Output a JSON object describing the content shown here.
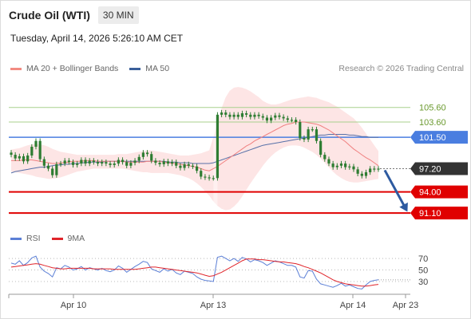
{
  "header": {
    "title": "Crude Oil (WTI)",
    "interval": "30 MIN",
    "datetime": "Tuesday, April 14, 2026 5:26:10 AM CET",
    "copyright": "Research © 2026 Trading Central"
  },
  "legend": [
    {
      "label": "MA 20 + Bollinger Bands",
      "color": "#f28b82"
    },
    {
      "label": "MA 50",
      "color": "#3a5f9a"
    }
  ],
  "rsi_legend": [
    {
      "label": "RSI",
      "color": "#5b7fd6"
    },
    {
      "label": "9MA",
      "color": "#e0242a"
    }
  ],
  "colors": {
    "resistance": "#a8d08d",
    "pivot": "#4a7ee0",
    "support": "#e00000",
    "last": "#333333",
    "candle": "#2e7d32",
    "arrow": "#2d5aa0",
    "band_fill": "#fde3e3"
  },
  "chart_data": {
    "type": "candlestick",
    "x_ticks": [
      "Apr 10",
      "Apr 13",
      "Apr 14",
      "Apr 23"
    ],
    "ylim": [
      88.6,
      109.4
    ],
    "levels": [
      {
        "value": 105.6,
        "label": "105.60",
        "kind": "resistance"
      },
      {
        "value": 103.6,
        "label": "103.60",
        "kind": "resistance"
      },
      {
        "value": 101.5,
        "label": "101.50",
        "kind": "pivot"
      },
      {
        "value": 97.2,
        "label": "97.20",
        "kind": "last"
      },
      {
        "value": 94.0,
        "label": "94.00",
        "kind": "support"
      },
      {
        "value": 91.1,
        "label": "91.10",
        "kind": "support"
      }
    ],
    "closes": [
      99.1,
      98.6,
      98.9,
      98.2,
      99.0,
      100.2,
      101.0,
      98.5,
      97.6,
      97.2,
      96.3,
      97.8,
      97.9,
      98.3,
      98.1,
      97.7,
      97.9,
      98.4,
      97.9,
      98.3,
      98.1,
      97.9,
      98.1,
      97.9,
      97.7,
      97.9,
      98.4,
      98.1,
      97.6,
      98.0,
      98.3,
      98.8,
      99.4,
      99.2,
      98.3,
      98.0,
      97.8,
      98.2,
      97.9,
      98.1,
      97.6,
      97.3,
      97.8,
      97.6,
      97.5,
      96.9,
      96.1,
      96.0,
      95.9,
      95.9,
      104.6,
      104.9,
      104.6,
      104.3,
      104.6,
      104.3,
      104.8,
      104.6,
      104.3,
      104.6,
      104.4,
      104.2,
      103.8,
      104.2,
      104.5,
      104.3,
      104.1,
      103.9,
      103.9,
      103.6,
      101.4,
      101.2,
      102.6,
      102.6,
      101.0,
      99.1,
      98.5,
      97.9,
      97.4,
      97.6,
      97.9,
      97.4,
      97.5,
      97.1,
      96.5,
      96.2,
      96.7,
      97.2,
      97.1,
      97.2
    ],
    "ma20": [
      98.3,
      98.3,
      98.3,
      98.4,
      98.4,
      98.4,
      98.3,
      98.2,
      98.1,
      98.0,
      97.9,
      97.9,
      98.0,
      98.0,
      98.1,
      98.2,
      98.2,
      98.2,
      98.3,
      98.3,
      98.3,
      98.2,
      98.2,
      98.2,
      98.2,
      98.2,
      98.2,
      98.2,
      98.1,
      98.1,
      98.1,
      98.1,
      98.1,
      98.2,
      98.2,
      98.2,
      98.2,
      98.1,
      98.0,
      97.9,
      97.9,
      97.8,
      97.7,
      97.6,
      97.5,
      97.4,
      97.2,
      97.0,
      96.9,
      97.2,
      97.5,
      97.9,
      98.3,
      98.7,
      99.1,
      99.5,
      99.9,
      100.3,
      100.6,
      101.0,
      101.3,
      101.6,
      101.9,
      102.2,
      102.5,
      102.8,
      103.1,
      103.3,
      103.4,
      103.6,
      103.6,
      103.6,
      103.5,
      103.4,
      103.3,
      103.1,
      102.8,
      102.5,
      102.1,
      101.7,
      101.3,
      100.9,
      100.4,
      99.9,
      99.5,
      99.1,
      98.7,
      98.4,
      98.0,
      97.6
    ],
    "ma50": [
      96.6,
      96.8,
      96.9,
      97.0,
      97.1,
      97.2,
      97.3,
      97.4,
      97.4,
      97.5,
      97.6,
      97.7,
      97.7,
      97.8,
      97.8,
      97.9,
      97.9,
      98.0,
      98.0,
      98.1,
      98.1,
      98.1,
      98.1,
      98.2,
      98.2,
      98.2,
      98.2,
      98.2,
      98.2,
      98.2,
      98.2,
      98.2,
      98.2,
      98.2,
      98.2,
      98.2,
      98.2,
      98.2,
      98.1,
      98.1,
      98.1,
      98.0,
      98.0,
      98.0,
      97.9,
      97.9,
      97.9,
      97.9,
      97.9,
      98.0,
      98.2,
      98.4,
      98.6,
      98.8,
      99.0,
      99.2,
      99.4,
      99.6,
      99.8,
      100.0,
      100.2,
      100.4,
      100.5,
      100.6,
      100.7,
      100.8,
      100.9,
      101.0,
      101.1,
      101.2,
      101.3,
      101.4,
      101.5,
      101.6,
      101.7,
      101.8,
      101.8,
      101.9,
      101.9,
      101.9,
      101.9,
      101.9,
      101.8,
      101.8,
      101.7,
      101.6,
      101.6,
      101.5,
      101.5,
      101.5
    ],
    "bb_upper": [
      99.8,
      99.9,
      100.0,
      100.2,
      100.4,
      100.5,
      100.6,
      100.5,
      100.4,
      100.2,
      99.9,
      99.7,
      99.5,
      99.4,
      99.3,
      99.2,
      99.1,
      99.1,
      99.1,
      99.1,
      99.1,
      99.1,
      99.1,
      99.1,
      99.1,
      99.1,
      99.2,
      99.2,
      99.2,
      99.3,
      99.4,
      99.5,
      99.6,
      99.7,
      99.7,
      99.6,
      99.5,
      99.4,
      99.3,
      99.2,
      99.1,
      99.0,
      99.0,
      99.0,
      99.1,
      99.2,
      99.3,
      99.5,
      99.7,
      101.5,
      103.5,
      105.5,
      107.0,
      107.9,
      108.3,
      108.4,
      108.3,
      108.1,
      107.8,
      107.4,
      107.0,
      106.5,
      106.2,
      106.0,
      106.0,
      106.1,
      106.3,
      106.5,
      106.7,
      106.8,
      106.9,
      107.0,
      107.1,
      107.0,
      106.9,
      106.7,
      106.5,
      106.3,
      106.0,
      105.7,
      105.3,
      104.9,
      104.5,
      104.1,
      103.5,
      102.8,
      102.0,
      101.2,
      100.4,
      99.6
    ],
    "bb_lower": [
      96.8,
      96.7,
      96.6,
      96.5,
      96.4,
      96.3,
      96.1,
      96.0,
      95.9,
      95.8,
      95.8,
      95.9,
      96.0,
      96.2,
      96.4,
      96.6,
      96.8,
      96.9,
      97.0,
      97.1,
      97.2,
      97.2,
      97.2,
      97.2,
      97.2,
      97.2,
      97.2,
      97.2,
      97.1,
      97.0,
      96.9,
      96.8,
      96.7,
      96.7,
      96.6,
      96.6,
      96.6,
      96.6,
      96.6,
      96.5,
      96.4,
      96.3,
      96.1,
      95.9,
      95.6,
      95.2,
      94.7,
      94.1,
      93.5,
      92.7,
      92.1,
      91.7,
      91.5,
      91.6,
      92.0,
      92.6,
      93.4,
      94.3,
      95.2,
      96.0,
      96.8,
      97.6,
      98.3,
      98.9,
      99.4,
      99.8,
      100.1,
      100.3,
      100.4,
      100.4,
      100.3,
      100.1,
      99.8,
      99.5,
      99.1,
      98.6,
      98.0,
      97.4,
      96.8,
      96.3,
      95.9,
      95.6,
      95.4,
      95.3,
      95.3,
      95.4,
      95.5,
      95.6,
      95.7,
      95.8
    ],
    "projection": {
      "from": 97.2,
      "to": 91.1
    },
    "rsi": {
      "ylim": [
        12,
        84
      ],
      "ticks": [
        70,
        50,
        30
      ],
      "values": [
        62,
        60,
        66,
        58,
        63,
        71,
        74,
        55,
        48,
        44,
        38,
        54,
        52,
        58,
        55,
        50,
        52,
        56,
        50,
        54,
        52,
        50,
        53,
        49,
        47,
        50,
        57,
        53,
        46,
        51,
        56,
        60,
        65,
        63,
        52,
        49,
        46,
        52,
        48,
        51,
        45,
        42,
        48,
        46,
        44,
        38,
        34,
        32,
        31,
        30,
        72,
        74,
        70,
        66,
        70,
        65,
        72,
        69,
        64,
        68,
        66,
        63,
        58,
        62,
        66,
        64,
        61,
        58,
        58,
        55,
        38,
        36,
        49,
        48,
        34,
        26,
        24,
        22,
        20,
        23,
        27,
        22,
        24,
        21,
        18,
        17,
        24,
        30,
        32,
        33
      ],
      "ma9": [
        55,
        56,
        57,
        58,
        59,
        60,
        61,
        60,
        58,
        56,
        54,
        53,
        52,
        52,
        53,
        53,
        53,
        53,
        53,
        53,
        52,
        52,
        52,
        52,
        52,
        51,
        51,
        51,
        51,
        51,
        51,
        52,
        53,
        54,
        55,
        55,
        54,
        53,
        52,
        51,
        50,
        49,
        48,
        47,
        46,
        45,
        43,
        41,
        39,
        40,
        43,
        46,
        50,
        54,
        58,
        62,
        66,
        69,
        69,
        69,
        68,
        68,
        67,
        66,
        65,
        64,
        64,
        63,
        62,
        61,
        59,
        56,
        54,
        51,
        48,
        45,
        41,
        37,
        33,
        30,
        28,
        26,
        25,
        24,
        23,
        22,
        22,
        23,
        24,
        25
      ]
    }
  }
}
